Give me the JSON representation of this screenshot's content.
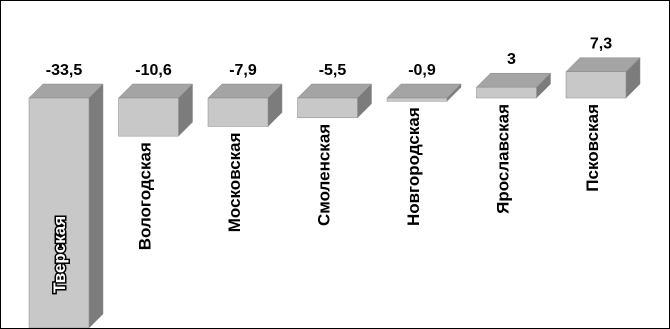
{
  "chart_data": {
    "type": "bar",
    "categories": [
      "Тверская",
      "Вологодская",
      "Московская",
      "Смоленская",
      "Новгородская",
      "Ярославская",
      "Псковская"
    ],
    "values": [
      -33.5,
      -10.6,
      -7.9,
      -5.5,
      -0.9,
      3,
      7.3
    ],
    "value_labels": [
      "-33,5",
      "-10,6",
      "-7,9",
      "-5,5",
      "-0,9",
      "3",
      "7,3"
    ],
    "title": "",
    "xlabel": "",
    "ylabel": "",
    "grid": false,
    "legend": "none",
    "colors": {
      "front": "#c8c8c8",
      "top": "#a4a4a4",
      "side": "#7c7c7c",
      "edge": "#8a8a8a"
    }
  }
}
